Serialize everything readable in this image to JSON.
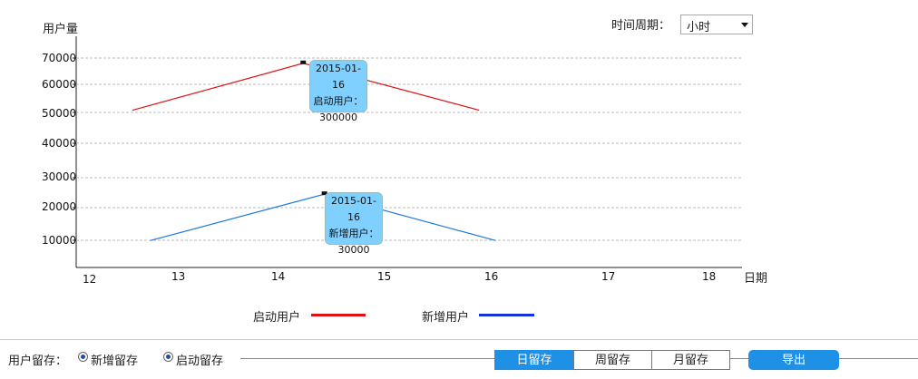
{
  "chart_data": {
    "type": "line",
    "ylabel": "用户量",
    "xlabel": "日期",
    "x_ticks": [
      "12",
      "13",
      "14",
      "15",
      "16",
      "17",
      "18"
    ],
    "y_ticks": [
      "70000",
      "60000",
      "50000",
      "40000",
      "30000",
      "20000",
      "10000"
    ],
    "series": [
      {
        "name": "启动用户",
        "color": "#dd1111",
        "x": [
          12.5,
          14.25,
          15.9
        ],
        "y": [
          50800,
          68000,
          50800
        ]
      },
      {
        "name": "新增用户",
        "color": "#1f78e0",
        "x": [
          12.7,
          14.45,
          16.05
        ],
        "y": [
          9900,
          24500,
          9900
        ]
      }
    ],
    "grid": true,
    "legend_placement": "bottom-center"
  },
  "time_period": {
    "label": "时间周期：",
    "selected": "小时"
  },
  "tooltips": [
    {
      "date": "2015-01-16",
      "metric": "启动用户：",
      "value": "300000"
    },
    {
      "date": "2015-01-16",
      "metric": "新增用户：",
      "value": "30000"
    }
  ],
  "legend": [
    {
      "label": "启动用户",
      "color": "#dd1111"
    },
    {
      "label": "新增用户",
      "color": "#1133dd"
    }
  ],
  "retention": {
    "label": "用户留存：",
    "options": [
      "新增留存",
      "启动留存"
    ],
    "tabs": [
      "日留存",
      "周留存",
      "月留存"
    ],
    "active_tab": "日留存",
    "export_label": "导出"
  },
  "colors": {
    "active_tab_bg": "#1e90e6",
    "export_bg": "#1e90e6",
    "divider": "#e06060"
  }
}
